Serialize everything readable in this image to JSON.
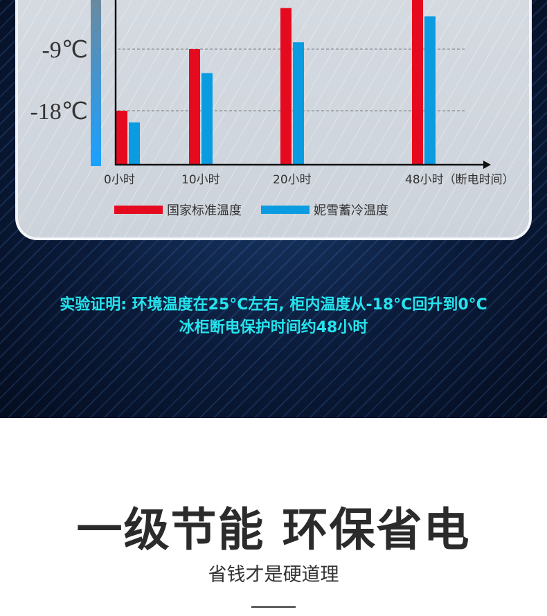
{
  "chart_data": {
    "type": "bar",
    "categories": [
      "0小时",
      "10小时",
      "20小时",
      "48小时（断电时间）"
    ],
    "series": [
      {
        "name": "国家标准温度",
        "color": "#e60a1e",
        "values": [
          -18,
          -9,
          -3,
          0
        ]
      },
      {
        "name": "妮雪蓄冷温度",
        "color": "#0a9be0",
        "values": [
          -19.7,
          -12.5,
          -8,
          -4.2
        ]
      }
    ],
    "y_ticks": [
      {
        "value": -9,
        "label": "-9℃"
      },
      {
        "value": -18,
        "label": "-18℃"
      }
    ],
    "grid": "dashed at ticks",
    "legend": "bottom"
  },
  "note": {
    "line1": "实验证明: 环境温度在25°C左右, 柜内温度从-18°C回升到0°C",
    "line2": "冰柜断电保护时间约48小时"
  },
  "heading": "一级节能 环保省电",
  "subheading": "省钱才是硬道理"
}
